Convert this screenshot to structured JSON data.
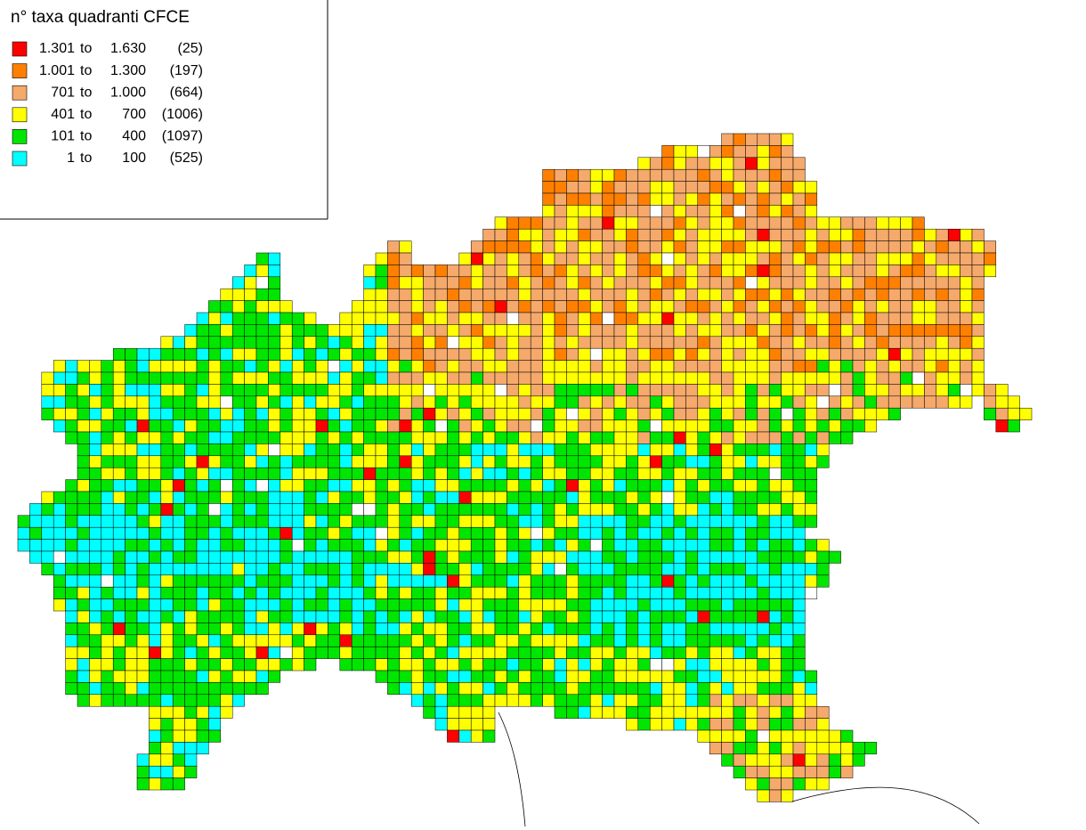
{
  "legend": {
    "title": "n° taxa quadranti CFCE",
    "range_word": "to",
    "items": [
      {
        "color": "#ff0000",
        "from": "1.301",
        "to": "1.630",
        "count": "(25)"
      },
      {
        "color": "#ff8000",
        "from": "1.001",
        "to": "1.300",
        "count": "(197)"
      },
      {
        "color": "#f5a96b",
        "from": "701",
        "to": "1.000",
        "count": "(664)"
      },
      {
        "color": "#ffff00",
        "from": "401",
        "to": "700",
        "count": "(1006)"
      },
      {
        "color": "#00e600",
        "from": "101",
        "to": "400",
        "count": "(1097)"
      },
      {
        "color": "#00ffff",
        "from": "1",
        "to": "100",
        "count": "(525)"
      }
    ]
  }
}
